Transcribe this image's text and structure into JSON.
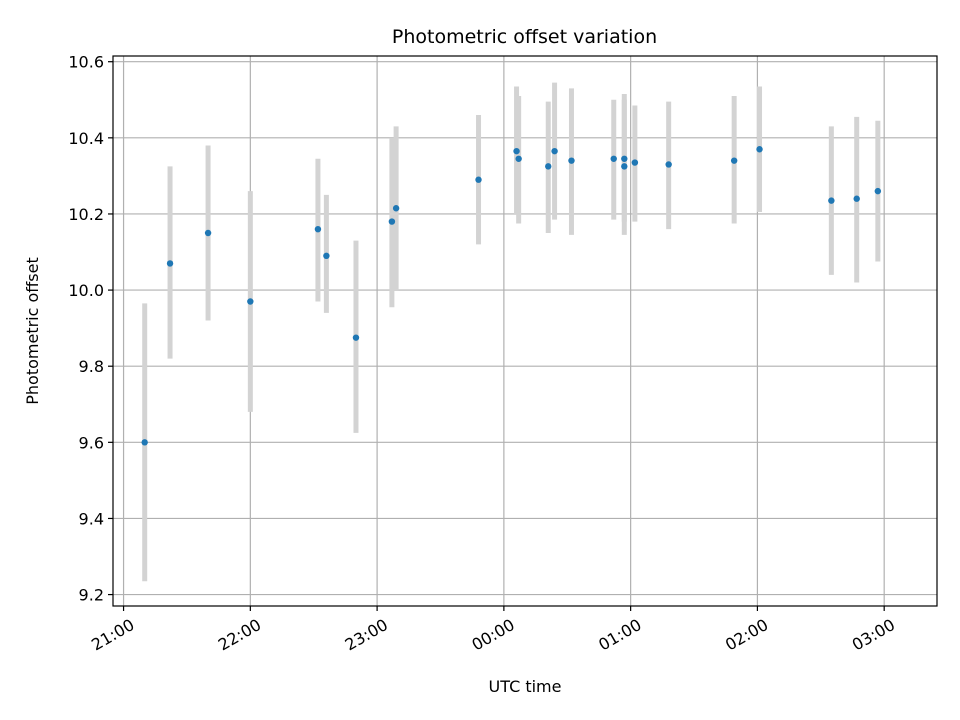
{
  "chart_data": {
    "type": "scatter",
    "title": "Photometric offset variation",
    "xlabel": "UTC time",
    "ylabel": "Photometric offset",
    "xlim": [
      "20:55",
      "03:25"
    ],
    "ylim": [
      9.17,
      10.615
    ],
    "x_ticks": [
      "21:00",
      "22:00",
      "23:00",
      "00:00",
      "01:00",
      "02:00",
      "03:00"
    ],
    "y_ticks": [
      9.2,
      9.4,
      9.6,
      9.8,
      10.0,
      10.2,
      10.4,
      10.6
    ],
    "y_tick_labels": [
      "9.2",
      "9.4",
      "9.6",
      "9.8",
      "10.0",
      "10.2",
      "10.4",
      "10.6"
    ],
    "grid": true,
    "colors": {
      "point": "#1f77b4",
      "errorbar": "#d3d3d3",
      "grid": "#b0b0b0"
    },
    "points": [
      {
        "t": "21:10",
        "y": 9.6,
        "ylo": 9.235,
        "yhi": 9.965
      },
      {
        "t": "21:22",
        "y": 10.07,
        "ylo": 9.82,
        "yhi": 10.325
      },
      {
        "t": "21:40",
        "y": 10.15,
        "ylo": 9.92,
        "yhi": 10.38
      },
      {
        "t": "22:00",
        "y": 9.97,
        "ylo": 9.68,
        "yhi": 10.26
      },
      {
        "t": "22:32",
        "y": 10.16,
        "ylo": 9.97,
        "yhi": 10.345
      },
      {
        "t": "22:36",
        "y": 10.09,
        "ylo": 9.94,
        "yhi": 10.25
      },
      {
        "t": "22:50",
        "y": 9.875,
        "ylo": 9.625,
        "yhi": 10.13
      },
      {
        "t": "23:07",
        "y": 10.18,
        "ylo": 9.955,
        "yhi": 10.4
      },
      {
        "t": "23:09",
        "y": 10.215,
        "ylo": 10.0,
        "yhi": 10.43
      },
      {
        "t": "23:48",
        "y": 10.29,
        "ylo": 10.12,
        "yhi": 10.46
      },
      {
        "t": "00:06",
        "y": 10.365,
        "ylo": 10.2,
        "yhi": 10.535
      },
      {
        "t": "00:07",
        "y": 10.345,
        "ylo": 10.175,
        "yhi": 10.51
      },
      {
        "t": "00:21",
        "y": 10.325,
        "ylo": 10.15,
        "yhi": 10.495
      },
      {
        "t": "00:24",
        "y": 10.365,
        "ylo": 10.185,
        "yhi": 10.545
      },
      {
        "t": "00:32",
        "y": 10.34,
        "ylo": 10.145,
        "yhi": 10.53
      },
      {
        "t": "00:52",
        "y": 10.345,
        "ylo": 10.185,
        "yhi": 10.5
      },
      {
        "t": "00:57",
        "y": 10.345,
        "ylo": 10.18,
        "yhi": 10.515
      },
      {
        "t": "00:57",
        "y": 10.325,
        "ylo": 10.145,
        "yhi": 10.5
      },
      {
        "t": "01:02",
        "y": 10.335,
        "ylo": 10.18,
        "yhi": 10.485
      },
      {
        "t": "01:18",
        "y": 10.33,
        "ylo": 10.16,
        "yhi": 10.495
      },
      {
        "t": "01:49",
        "y": 10.34,
        "ylo": 10.175,
        "yhi": 10.51
      },
      {
        "t": "02:01",
        "y": 10.37,
        "ylo": 10.205,
        "yhi": 10.535
      },
      {
        "t": "02:35",
        "y": 10.235,
        "ylo": 10.04,
        "yhi": 10.43
      },
      {
        "t": "02:47",
        "y": 10.24,
        "ylo": 10.02,
        "yhi": 10.455
      },
      {
        "t": "02:57",
        "y": 10.26,
        "ylo": 10.075,
        "yhi": 10.445
      }
    ]
  }
}
